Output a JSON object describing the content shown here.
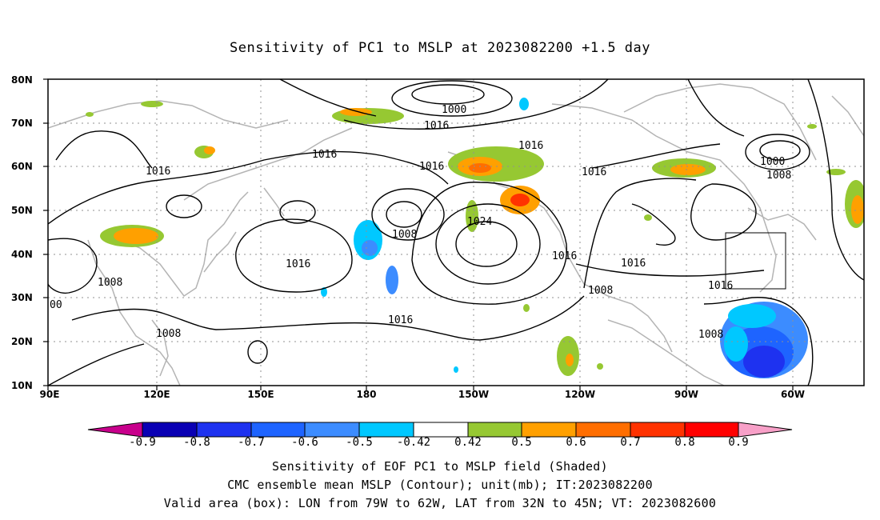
{
  "title": "Sensitivity of PC1 to MSLP at 2023082200 +1.5 day",
  "lon_ticks": [
    "90E",
    "120E",
    "150E",
    "180",
    "150W",
    "120W",
    "90W",
    "60W"
  ],
  "lat_ticks": [
    "80N",
    "70N",
    "60N",
    "50N",
    "40N",
    "30N",
    "20N",
    "10N"
  ],
  "contour_labels": [
    "1000",
    "1016",
    "1016",
    "1016",
    "1016",
    "1000",
    "1008",
    "1016",
    "1016",
    "1008",
    "1024",
    "1016",
    "1016",
    "1016",
    "1016",
    "1008",
    "1016",
    "1008",
    "1008",
    "1008",
    "00"
  ],
  "colorbar": {
    "labels": [
      "-0.9",
      "-0.8",
      "-0.7",
      "-0.6",
      "-0.5",
      "-0.42",
      "0.42",
      "0.5",
      "0.6",
      "0.7",
      "0.8",
      "0.9"
    ],
    "colors": [
      "#c8008c",
      "#0a00b4",
      "#1e32f0",
      "#1e64ff",
      "#3c8cff",
      "#00c8ff",
      "#ffffff",
      "#96c832",
      "#ffa000",
      "#ff6e00",
      "#ff3200",
      "#ff0000",
      "#f8a0c8"
    ]
  },
  "captions": {
    "line1": "Sensitivity of EOF PC1 to MSLP field (Shaded)",
    "line2": "CMC ensemble mean MSLP (Contour); unit(mb); IT:2023082200",
    "line3": "Valid area (box): LON from 79W to 62W, LAT from 32N to 45N; VT: 2023082600"
  }
}
